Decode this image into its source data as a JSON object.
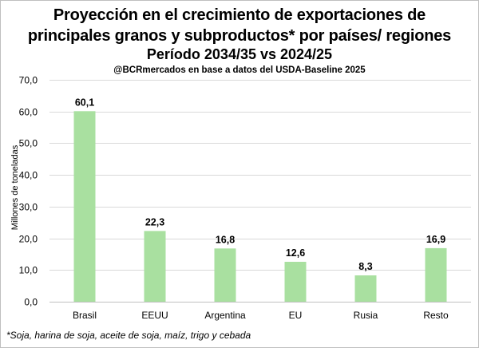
{
  "title": {
    "line1": "Proyección en el crecimiento de exportaciones de",
    "line2": "principales granos y subproductos*  por países/ regiones",
    "line3": "Período 2034/35 vs 2024/25",
    "subtitle": "@BCRmercados  en base a datos del USDA-Baseline 2025"
  },
  "footnote": "*Soja, harina de soja, aceite de soja, maíz, trigo y cebada",
  "colors": {
    "bar": "#a9e0a0",
    "gridline": "#d9d9d9",
    "axis": "#bfbfbf",
    "text": "#000000"
  },
  "chart_data": {
    "type": "bar",
    "title": "Proyección en el crecimiento de exportaciones de principales granos y subproductos* por países/ regiones Período 2034/35 vs 2024/25",
    "xlabel": "",
    "ylabel": "Millones de toneladas",
    "categories": [
      "Brasil",
      "EEUU",
      "Argentina",
      "EU",
      "Rusia",
      "Resto"
    ],
    "values": [
      60.1,
      22.3,
      16.8,
      12.6,
      8.3,
      16.9
    ],
    "value_labels": [
      "60,1",
      "22,3",
      "16,8",
      "12,6",
      "8,3",
      "16,9"
    ],
    "ylim": [
      0,
      70
    ],
    "yticks": [
      0,
      10,
      20,
      30,
      40,
      50,
      60,
      70
    ],
    "ytick_labels": [
      "0,0",
      "10,0",
      "20,0",
      "30,0",
      "40,0",
      "50,0",
      "60,0",
      "70,0"
    ],
    "grid": true,
    "legend": "none"
  }
}
